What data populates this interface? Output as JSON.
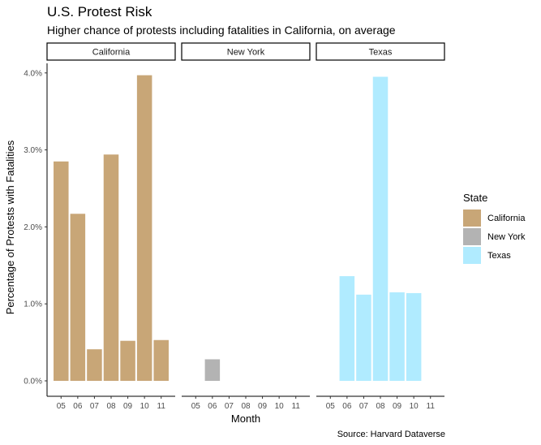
{
  "chart_data": {
    "type": "bar",
    "title": "U.S. Protest Risk",
    "subtitle": "Higher chance of protests including fatalities in California, on average",
    "xlabel": "Month",
    "ylabel": "Percentage of Protests with Fatalities",
    "caption": "Source: Harvard Dataverse",
    "ylim": [
      0,
      4.2
    ],
    "yticks": [
      "0.0%",
      "1.0%",
      "2.0%",
      "3.0%",
      "4.0%"
    ],
    "ytick_values": [
      0,
      1,
      2,
      3,
      4
    ],
    "categories": [
      "05",
      "06",
      "07",
      "08",
      "09",
      "10",
      "11"
    ],
    "legend_title": "State",
    "legend_position": "right",
    "grid": false,
    "facets": [
      {
        "name": "California",
        "color": "#C8A677",
        "values": [
          2.85,
          2.17,
          0.41,
          2.94,
          0.52,
          3.97,
          0.53
        ]
      },
      {
        "name": "New York",
        "color": "#B3B3B3",
        "values": [
          null,
          0.28,
          null,
          null,
          null,
          null,
          null
        ]
      },
      {
        "name": "Texas",
        "color": "#B0EBFF",
        "values": [
          null,
          1.36,
          1.12,
          3.95,
          1.15,
          1.14,
          null
        ]
      }
    ]
  }
}
